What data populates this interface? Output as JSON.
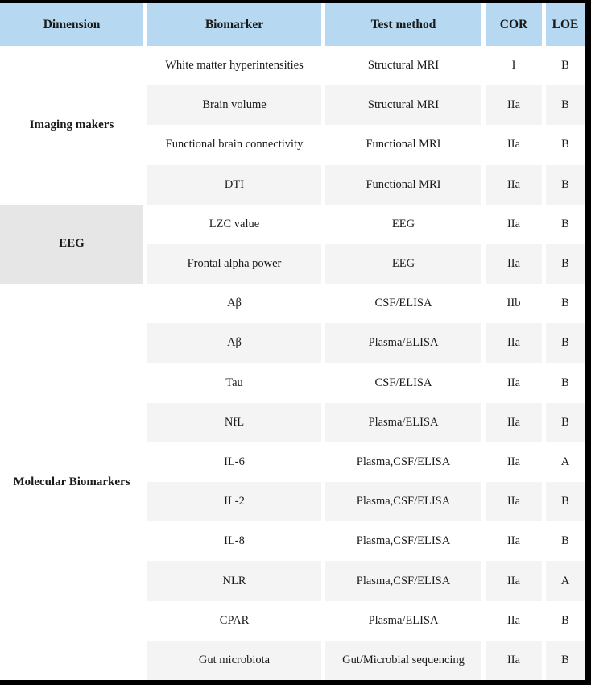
{
  "table": {
    "columns": [
      "Dimension",
      "Biomarker",
      "Test method",
      "COR",
      "LOE"
    ],
    "groups": [
      {
        "dimension": "Imaging makers",
        "rows": [
          {
            "biomarker": "White matter hyperintensities",
            "test_method": "Structural MRI",
            "cor": "I",
            "loe": "B"
          },
          {
            "biomarker": "Brain volume",
            "test_method": "Structural MRI",
            "cor": "IIa",
            "loe": "B"
          },
          {
            "biomarker": "Functional brain connectivity",
            "test_method": "Functional MRI",
            "cor": "IIa",
            "loe": "B"
          },
          {
            "biomarker": "DTI",
            "test_method": "Functional MRI",
            "cor": "IIa",
            "loe": "B"
          }
        ]
      },
      {
        "dimension": "EEG",
        "rows": [
          {
            "biomarker": "LZC value",
            "test_method": "EEG",
            "cor": "IIa",
            "loe": "B"
          },
          {
            "biomarker": "Frontal alpha power",
            "test_method": "EEG",
            "cor": "IIa",
            "loe": "B"
          }
        ]
      },
      {
        "dimension": "Molecular Biomarkers",
        "rows": [
          {
            "biomarker": "Aβ",
            "test_method": "CSF/ELISA",
            "cor": "IIb",
            "loe": "B"
          },
          {
            "biomarker": "Aβ",
            "test_method": "Plasma/ELISA",
            "cor": "IIa",
            "loe": "B"
          },
          {
            "biomarker": "Tau",
            "test_method": "CSF/ELISA",
            "cor": "IIa",
            "loe": "B"
          },
          {
            "biomarker": "NfL",
            "test_method": "Plasma/ELISA",
            "cor": "IIa",
            "loe": "B"
          },
          {
            "biomarker": "IL-6",
            "test_method": "Plasma,CSF/ELISA",
            "cor": "IIa",
            "loe": "A"
          },
          {
            "biomarker": "IL-2",
            "test_method": "Plasma,CSF/ELISA",
            "cor": "IIa",
            "loe": "B"
          },
          {
            "biomarker": "IL-8",
            "test_method": "Plasma,CSF/ELISA",
            "cor": "IIa",
            "loe": "B"
          },
          {
            "biomarker": "NLR",
            "test_method": "Plasma,CSF/ELISA",
            "cor": "IIa",
            "loe": "A"
          },
          {
            "biomarker": "CPAR",
            "test_method": "Plasma/ELISA",
            "cor": "IIa",
            "loe": "B"
          },
          {
            "biomarker": "Gut microbiota",
            "test_method": "Gut/Microbial sequencing",
            "cor": "IIa",
            "loe": "B"
          }
        ]
      }
    ]
  },
  "colors": {
    "header_bg": "#b6d9f1",
    "stripe_bg": "#f4f4f4",
    "eeg_cell_bg": "#e6e6e6",
    "border_color": "#000000"
  }
}
